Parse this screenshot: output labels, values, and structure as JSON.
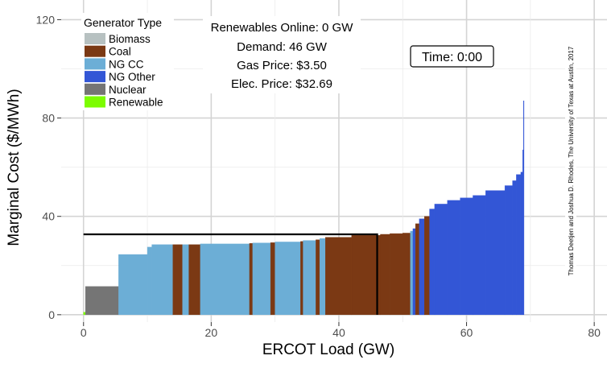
{
  "chart_data": {
    "type": "bar",
    "xlabel": "ERCOT Load (GW)",
    "ylabel": "Marginal Cost ($/MWh)",
    "xlim": [
      -3.5,
      82
    ],
    "ylim": [
      -3,
      128
    ],
    "x_ticks": [
      0,
      20,
      40,
      60,
      80
    ],
    "y_ticks": [
      0,
      40,
      80,
      120
    ],
    "grid": true,
    "legend": {
      "title": "Generator Type",
      "placement": "top-left",
      "entries": [
        {
          "name": "Biomass",
          "color": "#b7c1c1"
        },
        {
          "name": "Coal",
          "color": "#7b3914"
        },
        {
          "name": "NG CC",
          "color": "#6caed6"
        },
        {
          "name": "NG Other",
          "color": "#3356d6"
        },
        {
          "name": "Nuclear",
          "color": "#757575"
        },
        {
          "name": "Renewable",
          "color": "#7cfc00"
        }
      ]
    },
    "info": {
      "renewables": "Renewables Online: 0 GW",
      "demand": "Demand: 46 GW",
      "gas_price": "Gas Price: $3.50",
      "elec_price": "Elec. Price: $32.69"
    },
    "time_label": "Time: 0:00",
    "credit": "Thomas Deetjen and Joshua D. Rhodes, The University of Texas at Austin, 2017",
    "demand_gw": 46,
    "price": 32.69,
    "segments": [
      {
        "type": "Renewable",
        "x0": 0,
        "x1": 0.3,
        "y": 1
      },
      {
        "type": "Nuclear",
        "x0": 0.3,
        "x1": 5.5,
        "y": 11.5
      },
      {
        "type": "NG CC",
        "x0": 5.5,
        "x1": 10,
        "y": 24.5
      },
      {
        "type": "NG CC",
        "x0": 10,
        "x1": 10.7,
        "y": 27.5
      },
      {
        "type": "NG CC",
        "x0": 10.7,
        "x1": 14,
        "y": 28.5
      },
      {
        "type": "Coal",
        "x0": 14,
        "x1": 15.5,
        "y": 28.5
      },
      {
        "type": "NG CC",
        "x0": 15.5,
        "x1": 16.5,
        "y": 28.5
      },
      {
        "type": "Coal",
        "x0": 16.5,
        "x1": 18.3,
        "y": 28.5
      },
      {
        "type": "NG CC",
        "x0": 18.3,
        "x1": 26,
        "y": 28.8
      },
      {
        "type": "Coal",
        "x0": 26,
        "x1": 26.5,
        "y": 29
      },
      {
        "type": "NG CC",
        "x0": 26.5,
        "x1": 29.3,
        "y": 29.2
      },
      {
        "type": "Coal",
        "x0": 29.3,
        "x1": 30,
        "y": 29.3
      },
      {
        "type": "NG CC",
        "x0": 30,
        "x1": 34,
        "y": 29.6
      },
      {
        "type": "Coal",
        "x0": 34,
        "x1": 34.4,
        "y": 29.8
      },
      {
        "type": "NG CC",
        "x0": 34.4,
        "x1": 36.4,
        "y": 30.2
      },
      {
        "type": "Coal",
        "x0": 36.4,
        "x1": 37,
        "y": 30.5
      },
      {
        "type": "NG CC",
        "x0": 37,
        "x1": 37.9,
        "y": 31
      },
      {
        "type": "Coal",
        "x0": 37.9,
        "x1": 42,
        "y": 31.5
      },
      {
        "type": "Coal",
        "x0": 42,
        "x1": 46.5,
        "y": 32.3
      },
      {
        "type": "Coal",
        "x0": 46.5,
        "x1": 48,
        "y": 32.7
      },
      {
        "type": "Coal",
        "x0": 48,
        "x1": 50,
        "y": 33
      },
      {
        "type": "Coal",
        "x0": 50,
        "x1": 51.2,
        "y": 33.2
      },
      {
        "type": "NG CC",
        "x0": 51.2,
        "x1": 51.6,
        "y": 34
      },
      {
        "type": "NG Other",
        "x0": 51.6,
        "x1": 52,
        "y": 35
      },
      {
        "type": "Coal",
        "x0": 52,
        "x1": 52.6,
        "y": 37
      },
      {
        "type": "NG Other",
        "x0": 52.6,
        "x1": 53.4,
        "y": 39
      },
      {
        "type": "Coal",
        "x0": 53.4,
        "x1": 54.2,
        "y": 40
      },
      {
        "type": "NG Other",
        "x0": 54.2,
        "x1": 55,
        "y": 43
      },
      {
        "type": "NG Other",
        "x0": 55,
        "x1": 57,
        "y": 45
      },
      {
        "type": "NG Other",
        "x0": 57,
        "x1": 59,
        "y": 46.5
      },
      {
        "type": "NG Other",
        "x0": 59,
        "x1": 61,
        "y": 47.5
      },
      {
        "type": "NG Other",
        "x0": 61,
        "x1": 63,
        "y": 48.5
      },
      {
        "type": "NG Other",
        "x0": 63,
        "x1": 66,
        "y": 50.5
      },
      {
        "type": "NG Other",
        "x0": 66,
        "x1": 67.2,
        "y": 52.5
      },
      {
        "type": "NG Other",
        "x0": 67.2,
        "x1": 67.8,
        "y": 54.5
      },
      {
        "type": "NG Other",
        "x0": 67.8,
        "x1": 68.5,
        "y": 57
      },
      {
        "type": "NG Other",
        "x0": 68.5,
        "x1": 68.8,
        "y": 58
      },
      {
        "type": "NG Other",
        "x0": 68.8,
        "x1": 68.9,
        "y": 67
      },
      {
        "type": "NG Other",
        "x0": 68.9,
        "x1": 69,
        "y": 87
      }
    ]
  }
}
